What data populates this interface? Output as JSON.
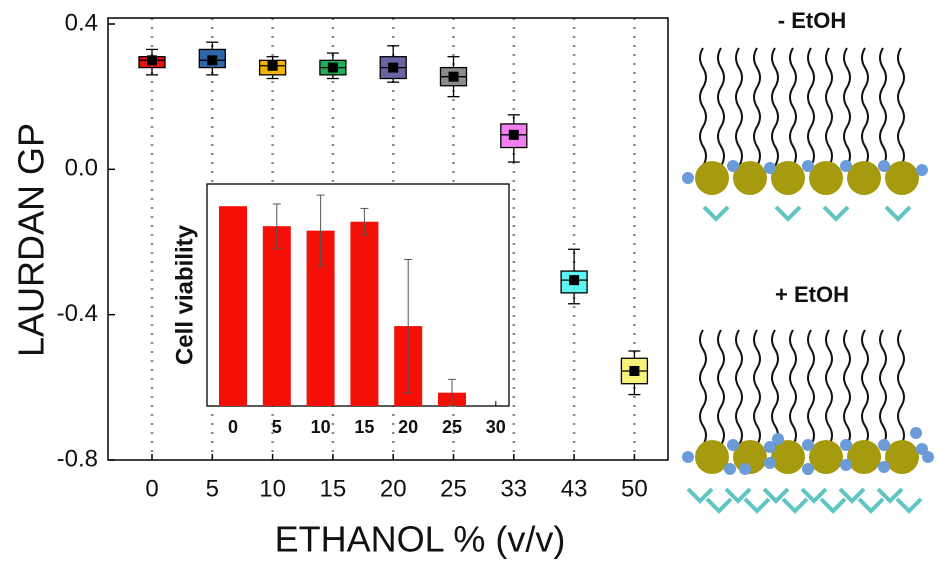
{
  "chart_data": [
    {
      "type": "box",
      "ylabel": "LAURDAN GP",
      "xlabel": "ETHANOL % (v/v)",
      "categories": [
        "0",
        "5",
        "10",
        "15",
        "20",
        "25",
        "33",
        "43",
        "50"
      ],
      "q1": [
        0.28,
        0.28,
        0.26,
        0.26,
        0.25,
        0.23,
        0.06,
        -0.34,
        -0.59
      ],
      "median": [
        0.3,
        0.3,
        0.285,
        0.28,
        0.28,
        0.255,
        0.095,
        -0.305,
        -0.555
      ],
      "q3": [
        0.31,
        0.33,
        0.3,
        0.3,
        0.31,
        0.28,
        0.125,
        -0.28,
        -0.52
      ],
      "mean": [
        0.3,
        0.3,
        0.285,
        0.28,
        0.28,
        0.255,
        0.095,
        -0.305,
        -0.555
      ],
      "min": [
        0.26,
        0.26,
        0.25,
        0.25,
        0.24,
        0.2,
        0.02,
        -0.37,
        -0.62
      ],
      "max": [
        0.33,
        0.35,
        0.31,
        0.32,
        0.34,
        0.31,
        0.15,
        -0.22,
        -0.5
      ],
      "colors": [
        "#e8120c",
        "#2e67a8",
        "#f0b400",
        "#1fae5a",
        "#6a64a3",
        "#8c8c8c",
        "#f17ff0",
        "#5ff4f4",
        "#f7f07a"
      ],
      "ylim": [
        -0.8,
        0.4
      ],
      "yticks": [
        0.4,
        {
          "value": 0,
          "label": "0.0"
        },
        -0.4,
        -0.8
      ],
      "xgrid": true
    },
    {
      "type": "bar",
      "ylabel": "Cell viability",
      "categories": [
        "0",
        "5",
        "10",
        "15",
        "20",
        "25",
        "30"
      ],
      "values": [
        0.9,
        0.81,
        0.79,
        0.83,
        0.36,
        0.06,
        null
      ],
      "errors": [
        0,
        0.1,
        0.16,
        0.06,
        0.3,
        0.06,
        null
      ],
      "color": "#f41008",
      "ylim": [
        0,
        1
      ]
    }
  ],
  "diagram": {
    "labels": [
      "- EtOH",
      "+ EtOH"
    ]
  }
}
